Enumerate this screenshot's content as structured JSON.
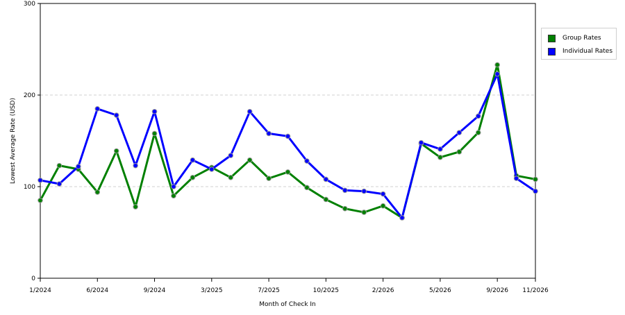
{
  "chart_data": {
    "type": "line",
    "xlabel": "Month of Check In",
    "ylabel": "Lowest Average Rate (USD)",
    "ylim": [
      0,
      300
    ],
    "yticks": [
      "0",
      "100",
      "200",
      "300"
    ],
    "x_tick_labels": [
      "1/2024",
      "6/2024",
      "9/2024",
      "3/2025",
      "7/2025",
      "10/2025",
      "2/2026",
      "5/2026",
      "9/2026",
      "11/2026"
    ],
    "x_tick_index": [
      0,
      3,
      6,
      9,
      12,
      15,
      18,
      21,
      24,
      26
    ],
    "grid": true,
    "legend_placement": "right",
    "series": [
      {
        "name": "Group Rates",
        "color": "#008000",
        "values": [
          85,
          123,
          119,
          94,
          139,
          78,
          158,
          90,
          110,
          121,
          110,
          129,
          109,
          116,
          99,
          86,
          76,
          72,
          79,
          66,
          147,
          132,
          138,
          159,
          233,
          112,
          108
        ]
      },
      {
        "name": "Individual Rates",
        "color": "#0000ff",
        "values": [
          107,
          103,
          122,
          185,
          178,
          123,
          182,
          100,
          129,
          119,
          134,
          182,
          158,
          155,
          128,
          108,
          96,
          95,
          92,
          66,
          148,
          141,
          159,
          177,
          223,
          109,
          95
        ]
      }
    ]
  }
}
